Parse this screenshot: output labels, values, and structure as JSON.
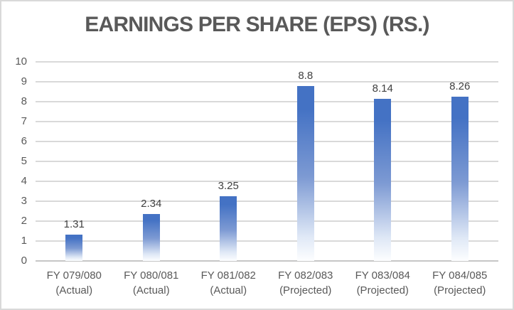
{
  "chart": {
    "title": "EARNINGS PER SHARE (EPS) (RS.)"
  },
  "chart_data": {
    "type": "bar",
    "title": "EARNINGS PER SHARE (EPS) (RS.)",
    "categories": [
      "FY 079/080 (Actual)",
      "FY 080/081 (Actual)",
      "FY 081/082 (Actual)",
      "FY 082/083 (Projected)",
      "FY 083/084 (Projected)",
      "FY 084/085 (Projected)"
    ],
    "values": [
      1.31,
      2.34,
      3.25,
      8.8,
      8.14,
      8.26
    ],
    "data_labels": [
      "1.31",
      "2.34",
      "3.25",
      "8.8",
      "8.14",
      "8.26"
    ],
    "xlabel": "",
    "ylabel": "",
    "ylim": [
      0,
      10
    ],
    "ytick_step": 1,
    "yticks": [
      0,
      1,
      2,
      3,
      4,
      5,
      6,
      7,
      8,
      9,
      10
    ],
    "grid": true,
    "legend_position": "none"
  },
  "colors": {
    "bar_blue": "#4472C4",
    "bar_mid": "#7d9ad3",
    "bar_fade": "#dfe8f6",
    "bar_bottom": "#fdfeff",
    "gridline": "#d9d9d9",
    "baseline": "#c6c6c6",
    "title_text": "#595959",
    "axis_text": "#595959",
    "value_text": "#404040",
    "frame_border": "#d9d9d9",
    "background": "#ffffff"
  }
}
